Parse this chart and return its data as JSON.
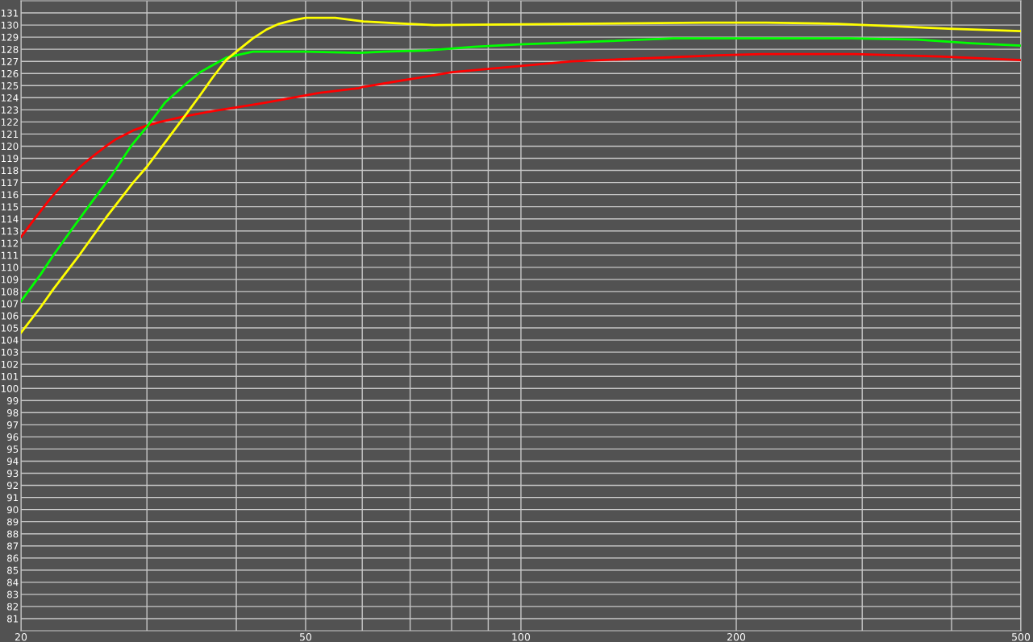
{
  "chart_data": {
    "type": "line",
    "log": "x",
    "grid": true,
    "marker": "none",
    "line_style": "solid",
    "xlim": [
      20,
      500
    ],
    "ylim": [
      80,
      132
    ],
    "xticks": [
      20,
      {
        "value": 30,
        "label": null
      },
      {
        "value": 40,
        "label": null
      },
      50,
      {
        "value": 60,
        "label": null
      },
      {
        "value": 70,
        "label": null
      },
      {
        "value": 80,
        "label": null
      },
      {
        "value": 90,
        "label": null
      },
      100,
      200,
      {
        "value": 300,
        "label": null
      },
      {
        "value": 400,
        "label": null
      },
      500
    ],
    "yticks": [
      81,
      82,
      83,
      84,
      85,
      86,
      87,
      88,
      89,
      90,
      91,
      92,
      93,
      94,
      95,
      96,
      97,
      98,
      99,
      100,
      101,
      102,
      103,
      104,
      105,
      106,
      107,
      108,
      109,
      110,
      111,
      112,
      113,
      114,
      115,
      116,
      117,
      118,
      119,
      120,
      121,
      122,
      123,
      124,
      125,
      126,
      127,
      128,
      129,
      130,
      131
    ],
    "series": [
      {
        "color": "#ff0000",
        "x": [
          20,
          20.9,
          22.0,
          23.0,
          24.2,
          25.0,
          26.3,
          27.2,
          28.7,
          30,
          31.3,
          34.1,
          37.1,
          40,
          44.0,
          50,
          52.2,
          59.4,
          60.2,
          80.1,
          117.8,
          188.6,
          217,
          293,
          385,
          500
        ],
        "values": [
          112.5,
          114.0,
          115.7,
          117.0,
          118.3,
          119.0,
          120.0,
          120.6,
          121.3,
          121.7,
          122.0,
          122.5,
          122.9,
          123.2,
          123.6,
          124.2,
          124.4,
          124.8,
          124.9,
          126.1,
          127.0,
          127.5,
          127.6,
          127.6,
          127.4,
          127.1
        ]
      },
      {
        "color": "#00ff00",
        "x": [
          20,
          21.3,
          22.2,
          23.6,
          25.2,
          26.8,
          28.5,
          30,
          31.8,
          34.1,
          35.6,
          37.1,
          38.7,
          40,
          42.2,
          50,
          59.4,
          64.3,
          74.0,
          85.9,
          99.2,
          122.8,
          163.4,
          188.6,
          289,
          358,
          425,
          500
        ],
        "values": [
          107.2,
          109.4,
          111.0,
          113.2,
          115.5,
          117.6,
          120.0,
          121.6,
          123.6,
          125.2,
          126.1,
          126.7,
          127.3,
          127.5,
          127.8,
          127.8,
          127.7,
          127.8,
          127.9,
          128.2,
          128.4,
          128.6,
          128.9,
          128.9,
          128.9,
          128.8,
          128.5,
          128.3
        ]
      },
      {
        "color": "#ffff00",
        "x": [
          20,
          21.3,
          22.2,
          24.2,
          26.3,
          28.7,
          30,
          31.8,
          34.1,
          35.6,
          37.1,
          38.7,
          40,
          42.2,
          44.0,
          45.9,
          48.0,
          50,
          55.0,
          60.2,
          69.5,
          75.6,
          117.8,
          180.4,
          220.5,
          277,
          333,
          396,
          500
        ],
        "values": [
          104.6,
          106.7,
          108.2,
          111.1,
          114.1,
          117.0,
          118.3,
          120.3,
          122.7,
          124.2,
          125.7,
          127.1,
          127.8,
          128.9,
          129.6,
          130.1,
          130.4,
          130.6,
          130.6,
          130.3,
          130.1,
          130.0,
          130.1,
          130.2,
          130.2,
          130.1,
          129.9,
          129.7,
          129.5
        ]
      }
    ]
  }
}
